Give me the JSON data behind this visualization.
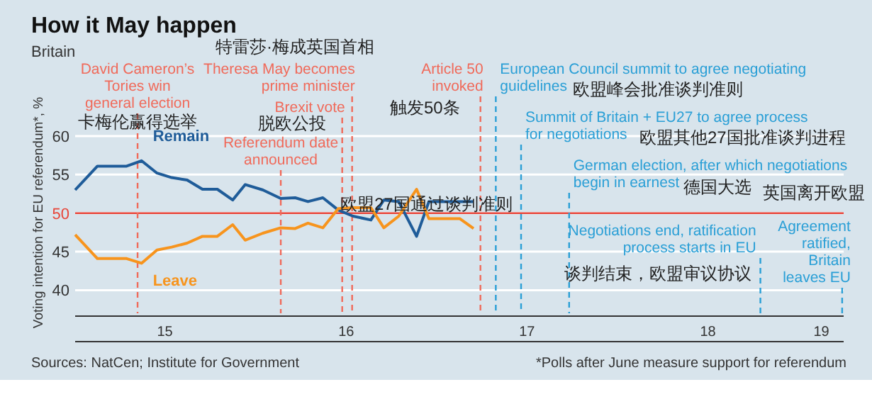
{
  "chart_data": {
    "type": "line",
    "title": "How it May happen",
    "subtitle": "Britain",
    "ylabel": "Voting intention for EU referendum*, %",
    "x": [
      "2015-01-01",
      "2015-02-15",
      "2015-04-15",
      "2015-05-15",
      "2015-06-15",
      "2015-07-15",
      "2015-08-15",
      "2015-09-15",
      "2015-10-15",
      "2015-11-15",
      "2015-12-10",
      "2016-01-15",
      "2016-02-20",
      "2016-03-20",
      "2016-04-15",
      "2016-05-15",
      "2016-06-15",
      "2016-07-15",
      "2016-08-20",
      "2016-09-15",
      "2016-10-15",
      "2016-11-20",
      "2016-12-15",
      "2017-02-15",
      "2017-03-15"
    ],
    "series": [
      {
        "name": "Remain",
        "color": "#1f5c99",
        "values": [
          53.0,
          56.1,
          56.1,
          56.8,
          55.2,
          54.6,
          54.3,
          53.1,
          53.1,
          51.7,
          53.7,
          53.0,
          51.9,
          52.0,
          51.5,
          52.0,
          50.4,
          49.6,
          49.1,
          51.7,
          51.5,
          47.0,
          51.5,
          51.5,
          51.5
        ]
      },
      {
        "name": "Leave",
        "color": "#f7941d",
        "values": [
          47.2,
          44.1,
          44.1,
          43.5,
          45.2,
          45.6,
          46.1,
          47.0,
          47.0,
          48.5,
          46.5,
          47.4,
          48.1,
          48.0,
          48.7,
          48.1,
          50.6,
          50.7,
          50.7,
          48.1,
          49.6,
          53.1,
          49.3,
          49.3,
          48.0
        ]
      }
    ],
    "xlim": [
      "2015-01-01",
      "2019-04-01"
    ],
    "xticks": [
      {
        "value": "2015-07-01",
        "label": "15"
      },
      {
        "value": "2016-07-01",
        "label": "16"
      },
      {
        "value": "2017-07-01",
        "label": "17"
      },
      {
        "value": "2018-07-01",
        "label": "18"
      },
      {
        "value": "2019-02-15",
        "label": "19"
      }
    ],
    "ylim": [
      37,
      60
    ],
    "yticks": [
      40,
      45,
      50,
      55,
      60
    ],
    "grid": "y",
    "line_style": "solid",
    "marker": "none",
    "ref_lines": [
      {
        "axis": "y",
        "value": 50,
        "color": "#e8463a",
        "line_style": "solid"
      },
      {
        "axis": "x",
        "value": "2015-05-07",
        "label": "David Cameron’s\nTories win\ngeneral election",
        "color": "#f06a5a",
        "line_style": "dashed"
      },
      {
        "axis": "x",
        "value": "2016-02-20",
        "label": "Referendum date\nannounced",
        "color": "#f06a5a",
        "line_style": "dashed"
      },
      {
        "axis": "x",
        "value": "2016-06-23",
        "label": "Brexit vote",
        "color": "#f06a5a",
        "line_style": "dashed"
      },
      {
        "axis": "x",
        "value": "2016-07-13",
        "label": "Theresa May becomes\nprime minister",
        "color": "#f06a5a",
        "line_style": "dashed"
      },
      {
        "axis": "x",
        "value": "2017-03-29",
        "label": "Article 50\ninvoked",
        "color": "#f06a5a",
        "line_style": "dashed"
      },
      {
        "axis": "x",
        "value": "2017-04-29",
        "label": "European Council summit to agree negotiating\nguidelines",
        "color": "#2a9fd6",
        "line_style": "dashed"
      },
      {
        "axis": "x",
        "value": "2017-06-19",
        "label": "Summit of Britain + EU27 to agree process\nfor negotiations",
        "color": "#2a9fd6",
        "line_style": "dashed"
      },
      {
        "axis": "x",
        "value": "2017-09-24",
        "label": "German election, after which negotiations\nbegin in earnest",
        "color": "#2a9fd6",
        "line_style": "dashed"
      },
      {
        "axis": "x",
        "value": "2018-10-15",
        "label": "Negotiations end, ratification\nprocess starts in EU",
        "color": "#2a9fd6",
        "line_style": "dashed"
      },
      {
        "axis": "x",
        "value": "2019-03-29",
        "label": "Agreement\nratified,\nBritain\nleaves EU",
        "color": "#2a9fd6",
        "line_style": "dashed"
      }
    ],
    "annotations": [
      "卡梅伦赢得选举",
      "特雷莎·梅成英国首相",
      "脱欧公投",
      "触发50条",
      "欧盟峰会批准谈判准则",
      "欧盟其他27国批准谈判进程",
      "德国大选",
      "欧盟27国通过谈判准则",
      "英国离开欧盟",
      "谈判结束，欧盟审议协议",
      "Sources: NatCen; Institute for Government",
      "*Polls after June measure support for referendum"
    ]
  }
}
